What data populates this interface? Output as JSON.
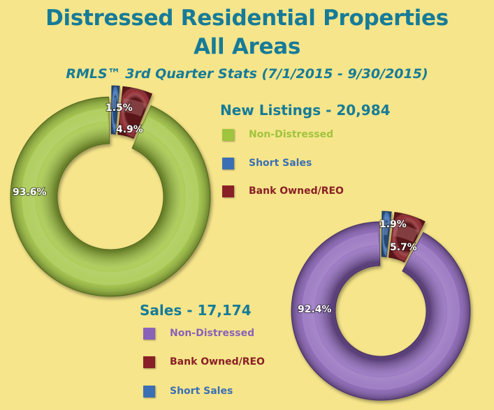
{
  "header": {
    "title_line1": "Distressed Residential Properties",
    "title_line2": "All Areas",
    "subtitle": "RMLS™ 3rd Quarter Stats (7/1/2015 - 9/30/2015)"
  },
  "colors": {
    "background": "#f6e58a",
    "title": "#167b98",
    "non_distressed_listings": "#9fc43e",
    "non_distressed_sales": "#8a62b8",
    "short_sales": "#3b6fb4",
    "bank_owned": "#8a2027"
  },
  "chart_data": [
    {
      "type": "pie",
      "variant": "donut",
      "title": "New Listings - 20,984",
      "legend": [
        {
          "label": "Non-Distressed",
          "color": "#9fc43e"
        },
        {
          "label": "Short Sales",
          "color": "#3b6fb4"
        },
        {
          "label": "Bank Owned/REO",
          "color": "#8a2027"
        }
      ],
      "slices": [
        {
          "label": "Non-Distressed",
          "value": 93.6,
          "display": "93.6%",
          "color": "#9fc43e",
          "exploded": false
        },
        {
          "label": "Short Sales",
          "value": 1.5,
          "display": "1.5%",
          "color": "#3b6fb4",
          "exploded": true
        },
        {
          "label": "Bank Owned/REO",
          "value": 4.9,
          "display": "4.9%",
          "color": "#8a2027",
          "exploded": true
        }
      ]
    },
    {
      "type": "pie",
      "variant": "donut",
      "title": "Sales - 17,174",
      "legend": [
        {
          "label": "Non-Distressed",
          "color": "#8a62b8"
        },
        {
          "label": "Bank Owned/REO",
          "color": "#8a2027"
        },
        {
          "label": "Short Sales",
          "color": "#3b6fb4"
        }
      ],
      "slices": [
        {
          "label": "Non-Distressed",
          "value": 92.4,
          "display": "92.4%",
          "color": "#8a62b8",
          "exploded": false
        },
        {
          "label": "Short Sales",
          "value": 1.9,
          "display": "1.9%",
          "color": "#3b6fb4",
          "exploded": true
        },
        {
          "label": "Bank Owned/REO",
          "value": 5.7,
          "display": "5.7%",
          "color": "#8a2027",
          "exploded": true
        }
      ]
    }
  ]
}
